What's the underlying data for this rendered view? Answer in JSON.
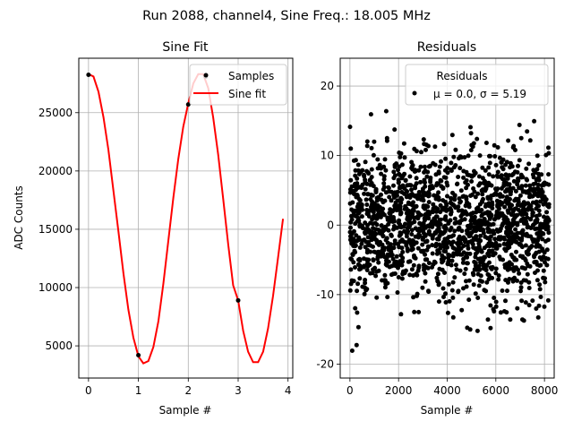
{
  "figure": {
    "suptitle": "Run 2088, channel4, Sine Freq.: 18.005 MHz"
  },
  "chart_data": [
    {
      "type": "line",
      "title": "Sine Fit",
      "xlabel": "Sample #",
      "ylabel": "ADC Counts",
      "xlim": [
        -0.195,
        4.095
      ],
      "ylim": [
        2240,
        29670
      ],
      "xticks": [
        0,
        1,
        2,
        3,
        4
      ],
      "yticks": [
        5000,
        10000,
        15000,
        20000,
        25000
      ],
      "grid": true,
      "legend_position": "top-right",
      "samples": {
        "name": "Samples",
        "color": "#000000",
        "points": [
          [
            0,
            28250
          ],
          [
            1,
            4200
          ],
          [
            2,
            25700
          ],
          [
            2.35,
            28100
          ],
          [
            3,
            8900
          ]
        ]
      },
      "fit": {
        "name": "Sine fit",
        "color": "#ff0000",
        "x": [
          0.0,
          0.1,
          0.2,
          0.3,
          0.4,
          0.5,
          0.6,
          0.7,
          0.8,
          0.9,
          1.0,
          1.1,
          1.2,
          1.3,
          1.4,
          1.5,
          1.6,
          1.7,
          1.8,
          1.9,
          2.0,
          2.1,
          2.2,
          2.3,
          2.4,
          2.5,
          2.6,
          2.7,
          2.8,
          2.9,
          3.0,
          3.1,
          3.2,
          3.3,
          3.4,
          3.5,
          3.6,
          3.7,
          3.8,
          3.9
        ],
        "y": [
          28300,
          28100,
          26800,
          24600,
          21800,
          18300,
          14800,
          11200,
          8100,
          5700,
          4100,
          3500,
          3700,
          4900,
          7100,
          10300,
          14000,
          17700,
          21000,
          23800,
          25800,
          27500,
          28300,
          28300,
          27100,
          24600,
          21400,
          17600,
          13700,
          10200,
          8900,
          6300,
          4500,
          3600,
          3600,
          4500,
          6500,
          9300,
          12600,
          15900
        ]
      }
    },
    {
      "type": "scatter",
      "title": "Residuals",
      "xlabel": "Sample #",
      "ylabel": "",
      "xlim": [
        -400,
        8400
      ],
      "ylim": [
        -22,
        24
      ],
      "xticks": [
        0,
        2000,
        4000,
        6000,
        8000
      ],
      "yticks": [
        -20,
        -10,
        0,
        10,
        20
      ],
      "grid": true,
      "legend_position": "top-right",
      "legend_title": "Residuals",
      "legend_label": "μ = 0.0, σ = 5.19",
      "n_points": 8192,
      "mean": 0.0,
      "sigma": 5.19,
      "marker_color": "#000000"
    }
  ]
}
